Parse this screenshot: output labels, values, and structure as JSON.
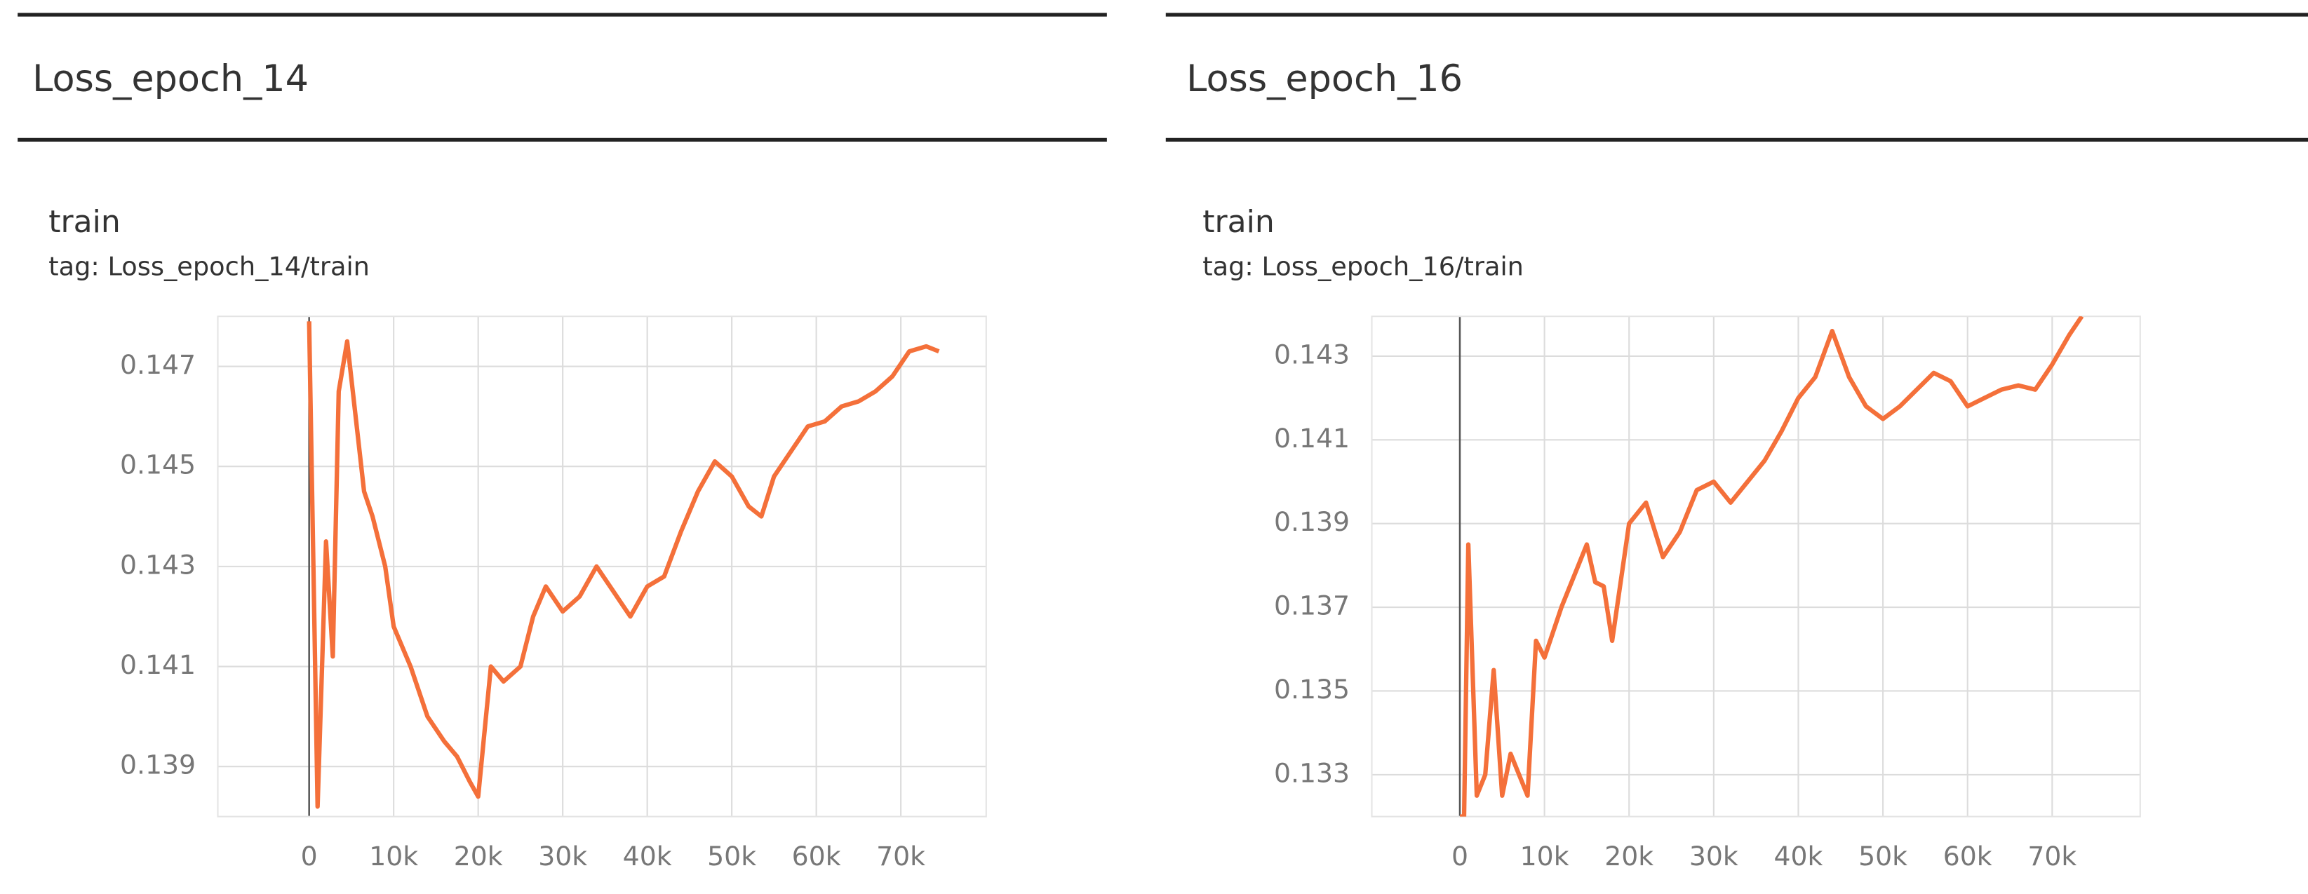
{
  "chart_data": [
    {
      "type": "line",
      "panel_title": "Loss_epoch_14",
      "title": "train",
      "subtitle": "tag: Loss_epoch_14/train",
      "x": [
        0,
        1000,
        2000,
        2800,
        3500,
        4500,
        5500,
        6500,
        7500,
        9000,
        10000,
        12000,
        14000,
        16000,
        17500,
        19000,
        20000,
        21500,
        23000,
        25000,
        26500,
        28000,
        30000,
        32000,
        34000,
        36000,
        38000,
        40000,
        42000,
        44000,
        46000,
        48000,
        50000,
        52000,
        53500,
        55000,
        57000,
        59000,
        61000,
        63000,
        65000,
        67000,
        69000,
        71000,
        73000,
        74500
      ],
      "series": [
        {
          "color": "#f4703a",
          "values": [
            0.1479,
            0.1382,
            0.1435,
            0.1412,
            0.1465,
            0.1475,
            0.146,
            0.1445,
            0.144,
            0.143,
            0.1418,
            0.141,
            0.14,
            0.1395,
            0.1392,
            0.1387,
            0.1384,
            0.141,
            0.1407,
            0.141,
            0.142,
            0.1426,
            0.1421,
            0.1424,
            0.143,
            0.1425,
            0.142,
            0.1426,
            0.1428,
            0.1437,
            0.1445,
            0.1451,
            0.1448,
            0.1442,
            0.144,
            0.1448,
            0.1453,
            0.1458,
            0.1459,
            0.1462,
            0.1463,
            0.1465,
            0.1468,
            0.1473,
            0.1474,
            0.1473
          ]
        }
      ],
      "xlim": [
        -10800,
        80100
      ],
      "ylim": [
        0.138,
        0.148
      ],
      "xticks": [
        0,
        {
          "value": 10000,
          "label": "10k"
        },
        {
          "value": 20000,
          "label": "20k"
        },
        {
          "value": 30000,
          "label": "30k"
        },
        {
          "value": 40000,
          "label": "40k"
        },
        {
          "value": 50000,
          "label": "50k"
        },
        {
          "value": 60000,
          "label": "60k"
        },
        {
          "value": 70000,
          "label": "70k"
        }
      ],
      "yticks": [
        0.139,
        0.141,
        0.143,
        0.145,
        0.147
      ],
      "grid": true
    },
    {
      "type": "line",
      "panel_title": "Loss_epoch_16",
      "title": "train",
      "subtitle": "tag: Loss_epoch_16/train",
      "x": [
        0,
        500,
        1000,
        2000,
        3000,
        4000,
        5000,
        6000,
        7000,
        8000,
        9000,
        10000,
        12000,
        14000,
        15000,
        16000,
        17000,
        18000,
        20000,
        22000,
        24000,
        26000,
        28000,
        30000,
        32000,
        34000,
        36000,
        38000,
        40000,
        42000,
        44000,
        46000,
        48000,
        50000,
        52000,
        54000,
        56000,
        58000,
        60000,
        62000,
        64000,
        66000,
        68000,
        70000,
        72000,
        73500
      ],
      "series": [
        {
          "color": "#f4703a",
          "values": [
            0.132,
            0.132,
            0.1385,
            0.1325,
            0.133,
            0.1355,
            0.1325,
            0.1335,
            0.133,
            0.1325,
            0.1362,
            0.1358,
            0.137,
            0.138,
            0.1385,
            0.1376,
            0.1375,
            0.1362,
            0.139,
            0.1395,
            0.1382,
            0.1388,
            0.1398,
            0.14,
            0.1395,
            0.14,
            0.1405,
            0.1412,
            0.142,
            0.1425,
            0.1436,
            0.1425,
            0.1418,
            0.1415,
            0.1418,
            0.1422,
            0.1426,
            0.1424,
            0.1418,
            0.142,
            0.1422,
            0.1423,
            0.1422,
            0.1428,
            0.1435,
            0.14395
          ]
        }
      ],
      "xlim": [
        -10400,
        80400
      ],
      "ylim": [
        0.132,
        0.14395
      ],
      "xticks": [
        0,
        {
          "value": 10000,
          "label": "10k"
        },
        {
          "value": 20000,
          "label": "20k"
        },
        {
          "value": 30000,
          "label": "30k"
        },
        {
          "value": 40000,
          "label": "40k"
        },
        {
          "value": 50000,
          "label": "50k"
        },
        {
          "value": 60000,
          "label": "60k"
        },
        {
          "value": 70000,
          "label": "70k"
        }
      ],
      "yticks": [
        0.133,
        0.135,
        0.137,
        0.139,
        0.141,
        0.143
      ],
      "grid": true
    }
  ]
}
